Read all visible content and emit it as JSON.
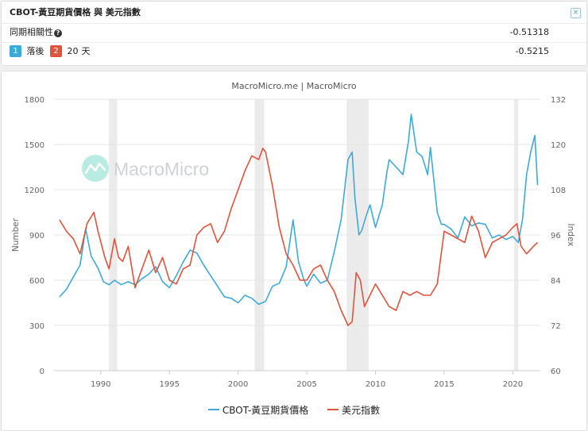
{
  "header": {
    "title": "CBOT-黃豆期貨價格 與 美元指數",
    "close_label": "×"
  },
  "stats": {
    "corr_label": "同期相關性",
    "help_label": "?",
    "corr_value": "-0.51318",
    "lag_badge_1": "1",
    "lag_text_1": "落後",
    "lag_badge_2": "2",
    "lag_days": "20",
    "lag_unit": "天",
    "lag_value": "-0.5215"
  },
  "chart_data": {
    "type": "line",
    "title": "MacroMicro.me | MacroMicro",
    "watermark": "MacroMicro",
    "xlabel": "",
    "ylabel_left": "Number",
    "ylabel_right": "Index",
    "x_range": [
      1986.6,
      2022.0
    ],
    "ylim_left": [
      0,
      1800
    ],
    "ylim_right": [
      60,
      132
    ],
    "x_ticks": [
      "1990",
      "1995",
      "2000",
      "2005",
      "2010",
      "2015",
      "2020"
    ],
    "x_tick_values": [
      1990,
      1995,
      2000,
      2005,
      2010,
      2015,
      2020
    ],
    "y_ticks_left": [
      "0",
      "300",
      "600",
      "900",
      "1200",
      "1500",
      "1800"
    ],
    "y_ticks_right": [
      "60",
      "72",
      "84",
      "96",
      "108",
      "120",
      "132"
    ],
    "recessions": [
      [
        1990.6,
        1991.2
      ],
      [
        2001.2,
        2001.9
      ],
      [
        2007.9,
        2009.5
      ],
      [
        2020.1,
        2020.4
      ]
    ],
    "series": [
      {
        "name": "CBOT-黃豆期貨價格",
        "axis": "left",
        "color": "#3eaad8",
        "x": [
          1987.0,
          1987.5,
          1988.0,
          1988.5,
          1988.9,
          1989.3,
          1989.8,
          1990.2,
          1990.6,
          1991.0,
          1991.5,
          1992.0,
          1992.5,
          1993.0,
          1993.5,
          1994.0,
          1994.5,
          1995.0,
          1995.5,
          1996.0,
          1996.5,
          1997.0,
          1997.5,
          1998.0,
          1998.5,
          1999.0,
          1999.5,
          2000.0,
          2000.5,
          2001.0,
          2001.5,
          2002.0,
          2002.5,
          2003.0,
          2003.5,
          2004.0,
          2004.4,
          2004.8,
          2005.0,
          2005.5,
          2006.0,
          2006.5,
          2007.0,
          2007.5,
          2008.0,
          2008.3,
          2008.5,
          2008.8,
          2009.0,
          2009.3,
          2009.6,
          2010.0,
          2010.5,
          2010.8,
          2011.0,
          2011.5,
          2012.0,
          2012.4,
          2012.6,
          2013.0,
          2013.4,
          2013.8,
          2014.0,
          2014.5,
          2014.8,
          2015.0,
          2015.5,
          2016.0,
          2016.5,
          2017.0,
          2017.5,
          2018.0,
          2018.5,
          2019.0,
          2019.5,
          2020.0,
          2020.4,
          2020.7,
          2021.0,
          2021.3,
          2021.6,
          2021.8
        ],
        "values": [
          490,
          540,
          620,
          700,
          940,
          760,
          680,
          590,
          570,
          600,
          570,
          590,
          570,
          610,
          640,
          690,
          590,
          550,
          630,
          720,
          800,
          780,
          700,
          630,
          560,
          490,
          480,
          450,
          500,
          480,
          440,
          460,
          560,
          580,
          690,
          1000,
          720,
          600,
          560,
          640,
          580,
          600,
          790,
          1000,
          1400,
          1450,
          1150,
          900,
          930,
          1020,
          1100,
          950,
          1100,
          1300,
          1400,
          1350,
          1300,
          1520,
          1700,
          1450,
          1420,
          1300,
          1480,
          1050,
          970,
          970,
          940,
          880,
          1020,
          960,
          980,
          970,
          880,
          900,
          870,
          890,
          850,
          1000,
          1300,
          1450,
          1560,
          1230
        ]
      },
      {
        "name": "美元指數",
        "axis": "right",
        "color": "#e0533d",
        "x": [
          1987.0,
          1987.5,
          1988.0,
          1988.5,
          1989.0,
          1989.5,
          1989.8,
          1990.3,
          1990.6,
          1991.0,
          1991.3,
          1991.6,
          1992.0,
          1992.5,
          1993.0,
          1993.5,
          1994.0,
          1994.5,
          1995.0,
          1995.5,
          1996.0,
          1996.5,
          1997.0,
          1997.5,
          1998.0,
          1998.5,
          1999.0,
          1999.5,
          2000.0,
          2000.5,
          2001.0,
          2001.5,
          2001.8,
          2002.0,
          2002.5,
          2003.0,
          2003.5,
          2004.0,
          2004.5,
          2005.0,
          2005.5,
          2006.0,
          2006.5,
          2007.0,
          2007.5,
          2008.0,
          2008.3,
          2008.6,
          2008.9,
          2009.2,
          2009.6,
          2010.0,
          2010.5,
          2011.0,
          2011.5,
          2012.0,
          2012.5,
          2013.0,
          2013.5,
          2014.0,
          2014.5,
          2015.0,
          2015.5,
          2016.0,
          2016.5,
          2017.0,
          2017.5,
          2018.0,
          2018.5,
          2019.0,
          2019.5,
          2020.0,
          2020.3,
          2020.6,
          2021.0,
          2021.5,
          2021.8
        ],
        "values": [
          100,
          97,
          95,
          91,
          99,
          102,
          97,
          90,
          87,
          95,
          90,
          89,
          93,
          82,
          87,
          92,
          86,
          90,
          84,
          83,
          87,
          88,
          96,
          98,
          99,
          94,
          97,
          103,
          108,
          113,
          117,
          116,
          119,
          118,
          109,
          98,
          91,
          88,
          84,
          84,
          87,
          88,
          84,
          81,
          76,
          72,
          73,
          86,
          84,
          77,
          80,
          83,
          80,
          77,
          76,
          81,
          80,
          81,
          80,
          80,
          83,
          97,
          96,
          95,
          94,
          101,
          97,
          90,
          94,
          95,
          96,
          98,
          99,
          93,
          91,
          93,
          94
        ]
      }
    ]
  }
}
